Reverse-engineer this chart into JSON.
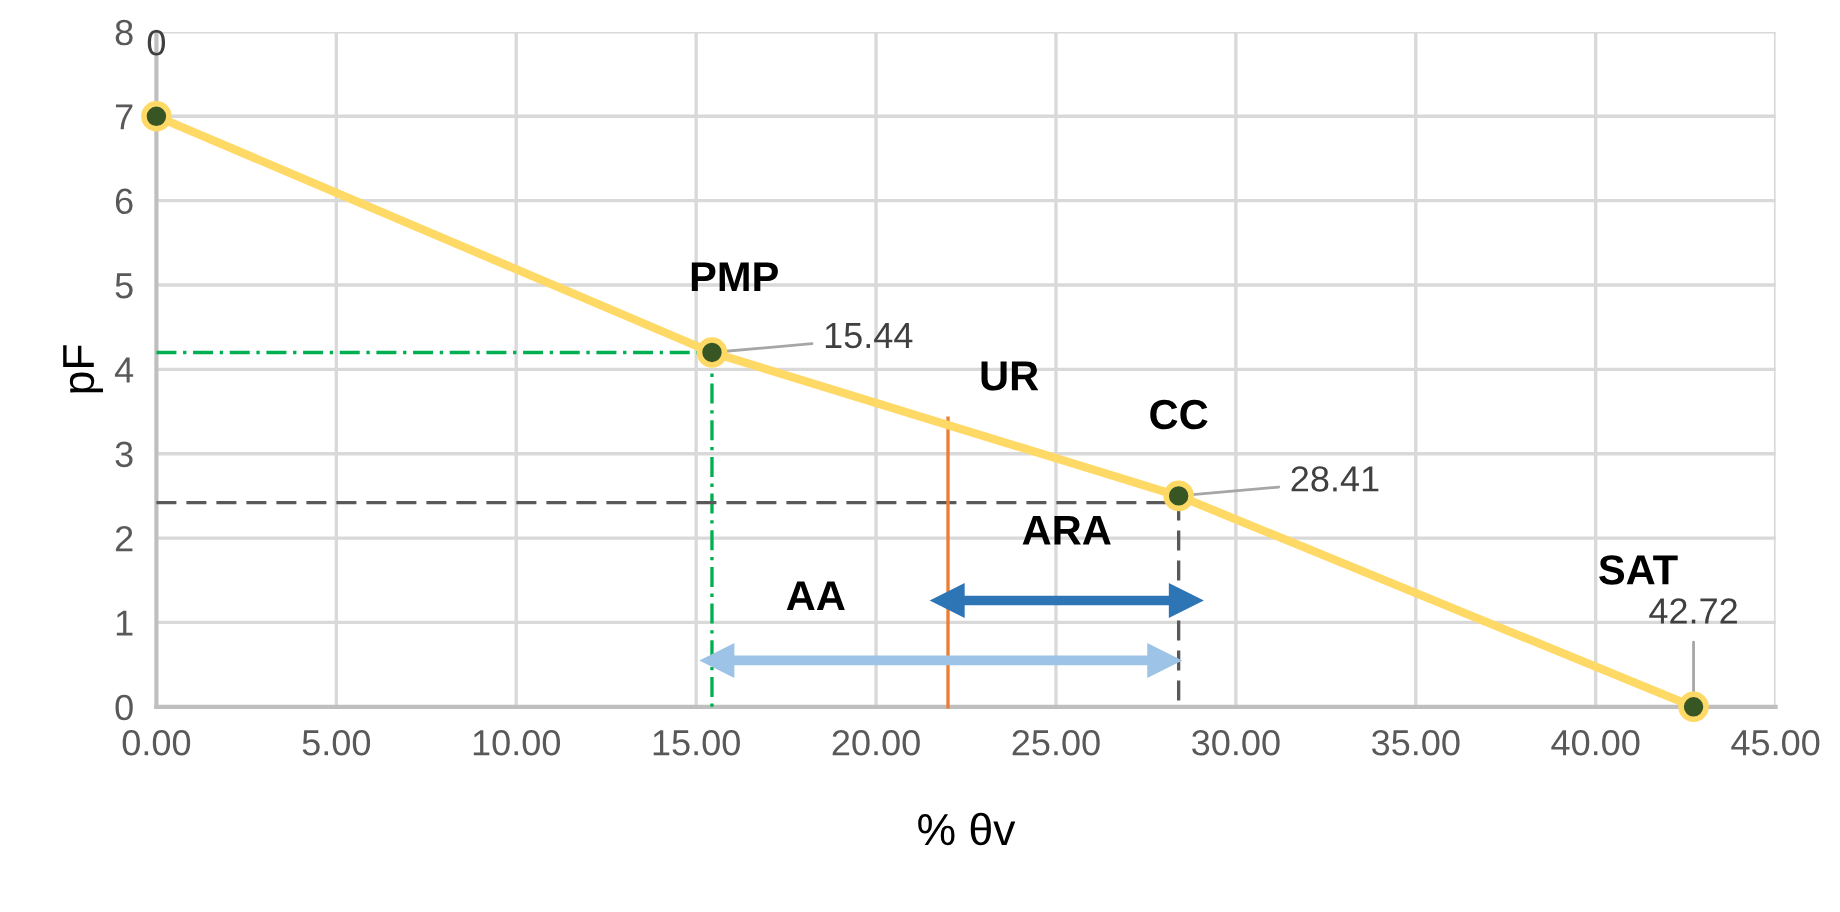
{
  "chart_data": {
    "type": "line",
    "xlabel": "% θv",
    "ylabel": "pF",
    "xlim": [
      0,
      45
    ],
    "ylim": [
      0,
      8
    ],
    "xticks": [
      {
        "value": 0,
        "label": "0.00"
      },
      {
        "value": 5,
        "label": "5.00"
      },
      {
        "value": 10,
        "label": "10.00"
      },
      {
        "value": 15,
        "label": "15.00"
      },
      {
        "value": 20,
        "label": "20.00"
      },
      {
        "value": 25,
        "label": "25.00"
      },
      {
        "value": 30,
        "label": "30.00"
      },
      {
        "value": 35,
        "label": "35.00"
      },
      {
        "value": 40,
        "label": "40.00"
      },
      {
        "value": 45,
        "label": "45.00"
      }
    ],
    "yticks": [
      0,
      1,
      2,
      3,
      4,
      5,
      6,
      7,
      8
    ],
    "grid": true,
    "series": [
      {
        "color": "#ffd966",
        "x": [
          0,
          15.44,
          28.41,
          42.72
        ],
        "values": [
          7,
          4.2,
          2.5,
          0
        ],
        "marker": "circle",
        "line_style": "solid"
      },
      {
        "color": "#00b050",
        "x": [
          0,
          15.44,
          15.44
        ],
        "values": [
          4.2,
          4.2,
          0
        ],
        "marker": "none",
        "line_style": "dashdot"
      },
      {
        "color": "#595959",
        "x": [
          0,
          28.41,
          28.41
        ],
        "values": [
          2.42,
          2.42,
          0
        ],
        "marker": "none",
        "line_style": "dashed"
      },
      {
        "color": "#ed7d31",
        "x": [
          22,
          22
        ],
        "values": [
          0,
          3.42
        ],
        "marker": "none",
        "line_style": "solid"
      },
      {
        "color": "#2e75b6",
        "x": [
          22,
          28.6
        ],
        "values": [
          1.26,
          1.26
        ],
        "marker": "triangle",
        "line_style": "solid"
      },
      {
        "color": "#9dc3e6",
        "x": [
          15.6,
          28.0
        ],
        "values": [
          0.55,
          0.55
        ],
        "marker": "triangle",
        "line_style": "solid"
      }
    ],
    "annotations": [
      "PMP",
      "UR",
      "CC",
      "SAT",
      "ARA",
      "AA",
      {
        "text": "0",
        "x": 0,
        "y": 7
      },
      {
        "text": "15.44",
        "x": 15.44,
        "y": 4.2
      },
      {
        "text": "28.41",
        "x": 28.41,
        "y": 2.5
      },
      {
        "text": "42.72",
        "x": 42.72,
        "y": 0
      }
    ]
  }
}
